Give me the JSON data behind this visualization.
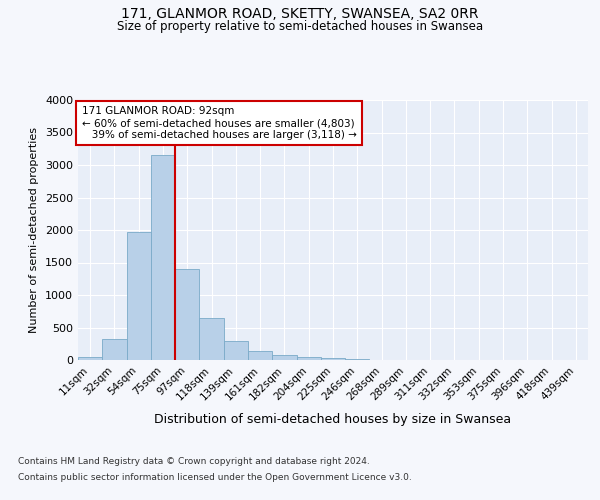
{
  "title": "171, GLANMOR ROAD, SKETTY, SWANSEA, SA2 0RR",
  "subtitle": "Size of property relative to semi-detached houses in Swansea",
  "xlabel": "Distribution of semi-detached houses by size in Swansea",
  "ylabel": "Number of semi-detached properties",
  "categories": [
    "11sqm",
    "32sqm",
    "54sqm",
    "75sqm",
    "97sqm",
    "118sqm",
    "139sqm",
    "161sqm",
    "182sqm",
    "204sqm",
    "225sqm",
    "246sqm",
    "268sqm",
    "289sqm",
    "311sqm",
    "332sqm",
    "353sqm",
    "375sqm",
    "396sqm",
    "418sqm",
    "439sqm"
  ],
  "values": [
    50,
    320,
    1970,
    3160,
    1400,
    650,
    300,
    140,
    70,
    50,
    25,
    10,
    5,
    3,
    2,
    2,
    2,
    2,
    2,
    2,
    2
  ],
  "bar_color": "#b8d0e8",
  "bar_edge_color": "#7aaac8",
  "vline_x_idx": 3,
  "vline_color": "#cc0000",
  "annotation_text": "171 GLANMOR ROAD: 92sqm\n← 60% of semi-detached houses are smaller (4,803)\n   39% of semi-detached houses are larger (3,118) →",
  "annotation_box_facecolor": "#ffffff",
  "annotation_box_edgecolor": "#cc0000",
  "ylim": [
    0,
    4000
  ],
  "yticks": [
    0,
    500,
    1000,
    1500,
    2000,
    2500,
    3000,
    3500,
    4000
  ],
  "footer_line1": "Contains HM Land Registry data © Crown copyright and database right 2024.",
  "footer_line2": "Contains public sector information licensed under the Open Government Licence v3.0.",
  "bg_color": "#e8eef8",
  "fig_bg_color": "#f5f7fc"
}
